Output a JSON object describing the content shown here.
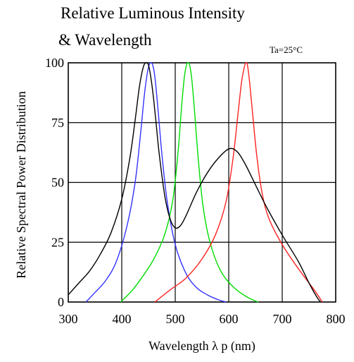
{
  "chart_data": {
    "type": "line",
    "title": "Relative Luminous Intensity",
    "subtitle": "& Wavelength",
    "annotation": "Ta=25°C",
    "xlabel": "Wavelength  λ p (nm)",
    "ylabel": "Relative Spectral Power Distribution",
    "xlim": [
      300,
      800
    ],
    "ylim": [
      0,
      100
    ],
    "xticks": [
      "300",
      "400",
      "500",
      "600",
      "700",
      "800"
    ],
    "yticks": [
      "0",
      "25",
      "50",
      "75",
      "100"
    ],
    "grid": true,
    "colors": {
      "blue": "#3333ff",
      "green": "#00dd00",
      "red": "#ff2222",
      "black": "#000000"
    },
    "series": [
      {
        "color": "#3333ff",
        "x": [
          333,
          350,
          370,
          390,
          410,
          425,
          435,
          442,
          448,
          452,
          455,
          458,
          462,
          468,
          475,
          485,
          500,
          520,
          540,
          560,
          580,
          595
        ],
        "y": [
          0,
          4,
          9,
          17,
          32,
          50,
          70,
          86,
          96,
          99.5,
          100,
          99,
          94,
          80,
          62,
          42,
          24,
          12,
          6,
          3,
          1,
          0
        ]
      },
      {
        "color": "#00dd00",
        "x": [
          398,
          420,
          440,
          460,
          480,
          495,
          505,
          512,
          517,
          521,
          524,
          527,
          531,
          536,
          543,
          552,
          565,
          585,
          610,
          635,
          655
        ],
        "y": [
          0,
          5,
          11,
          18,
          28,
          42,
          62,
          82,
          94,
          99,
          100,
          99,
          93,
          80,
          60,
          40,
          25,
          13,
          6,
          2,
          0
        ]
      },
      {
        "color": "#ff2222",
        "x": [
          462,
          490,
          520,
          550,
          575,
          595,
          608,
          617,
          624,
          629,
          632,
          635,
          639,
          645,
          652,
          662,
          675,
          700,
          730,
          760,
          775
        ],
        "y": [
          0,
          5,
          10,
          18,
          28,
          42,
          60,
          78,
          92,
          98,
          100,
          99,
          92,
          78,
          62,
          46,
          35,
          24,
          14,
          5,
          0
        ]
      },
      {
        "color": "#000000",
        "x": [
          300,
          320,
          340,
          360,
          380,
          400,
          415,
          425,
          433,
          440,
          445,
          450,
          455,
          460,
          465,
          470,
          480,
          490,
          500,
          510,
          520,
          540,
          560,
          580,
          600,
          615,
          630,
          650,
          670,
          700,
          730,
          750,
          765,
          772
        ],
        "y": [
          3,
          8,
          13,
          20,
          29,
          43,
          60,
          76,
          90,
          98,
          100,
          99,
          93,
          84,
          73,
          62,
          45,
          35,
          31,
          32,
          36,
          46,
          54,
          60,
          64,
          63,
          58,
          49,
          40,
          28,
          17,
          8,
          2,
          0
        ]
      }
    ]
  }
}
